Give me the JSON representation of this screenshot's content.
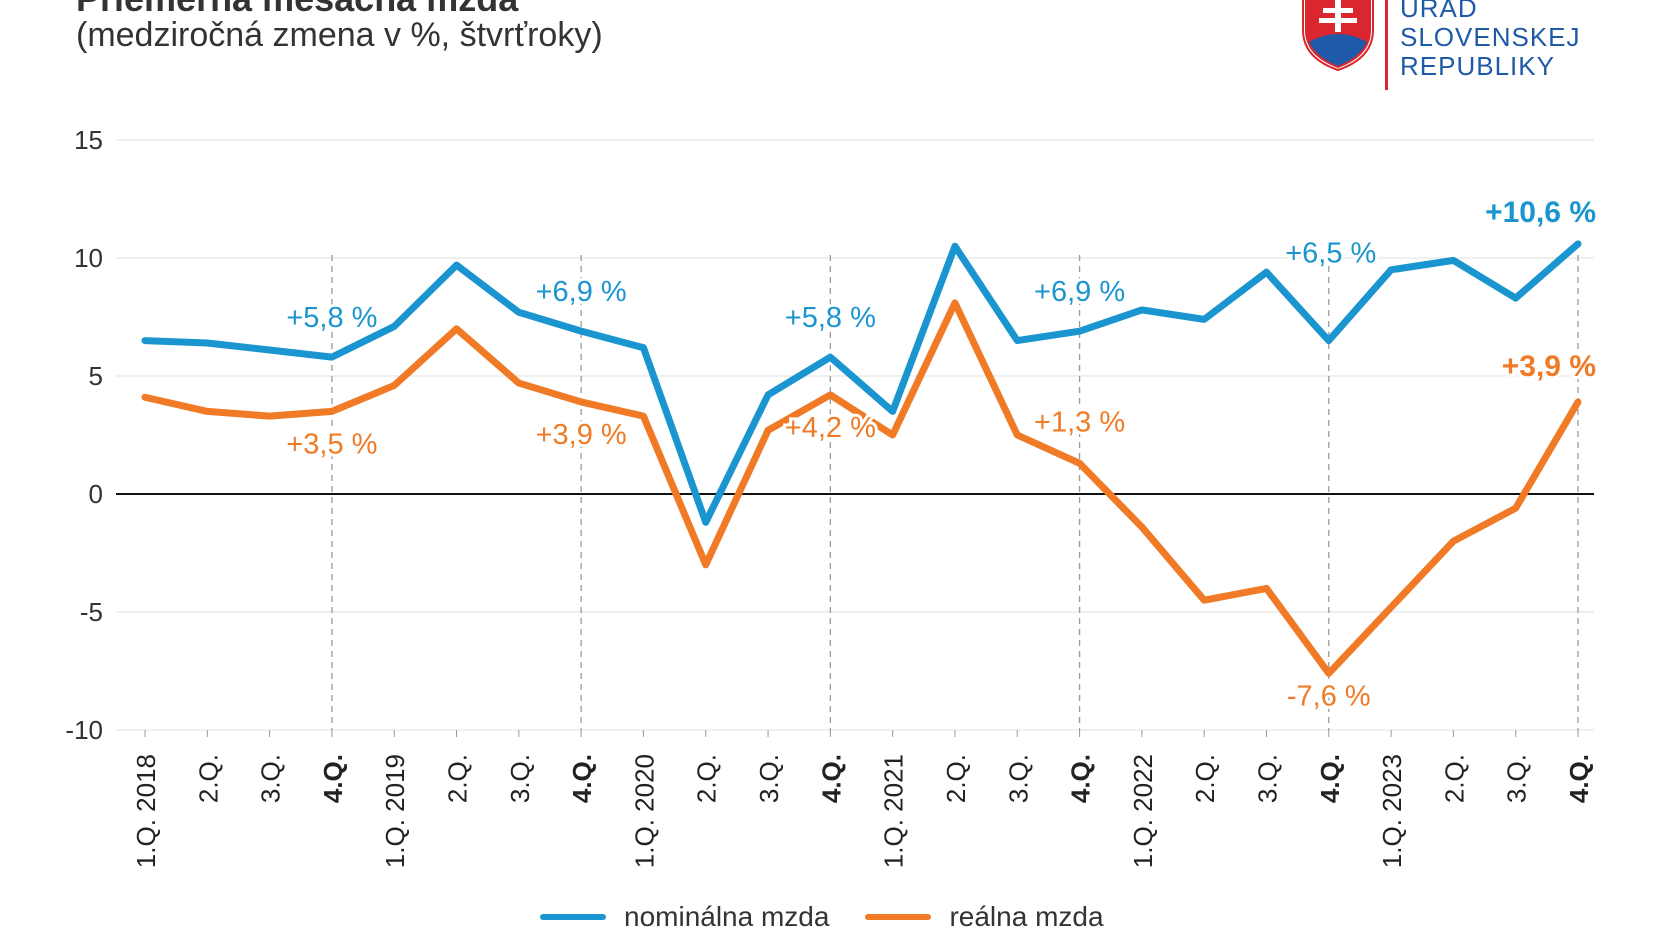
{
  "header": {
    "title": "Priemerná mesačná mzda",
    "subtitle": "(medziročná zmena v %, štvrťroky)"
  },
  "logo": {
    "lines": [
      "ÚRAD",
      "SLOVENSKEJ",
      "REPUBLIKY"
    ],
    "emblem": "slovak-coat-of-arms",
    "colors": {
      "text": "#1f5aa8",
      "divider": "#d9262f",
      "shield_red": "#d9262f",
      "shield_blue": "#1f5aa8"
    }
  },
  "chart_data": {
    "type": "line",
    "title": "",
    "xlabel": "",
    "ylabel": "",
    "ylim": [
      -10,
      15
    ],
    "yticks": [
      "15",
      "10",
      "5",
      "0",
      "-5",
      "-10"
    ],
    "grid": true,
    "categories": [
      "1.Q. 2018",
      "2.Q.",
      "3.Q.",
      "4.Q.",
      "1.Q. 2019",
      "2.Q.",
      "3.Q.",
      "4.Q.",
      "1.Q. 2020",
      "2.Q.",
      "3.Q.",
      "4.Q.",
      "1.Q. 2021",
      "2.Q.",
      "3.Q.",
      "4.Q.",
      "1.Q. 2022",
      "2.Q.",
      "3.Q.",
      "4.Q.",
      "1.Q. 2023",
      "2.Q.",
      "3.Q.",
      "4.Q."
    ],
    "bold_categories": [
      3,
      7,
      11,
      15,
      19,
      23
    ],
    "series": [
      {
        "name": "nominálna mzda",
        "color": "#1b95cf",
        "values": [
          6.5,
          6.4,
          6.1,
          5.8,
          7.1,
          9.7,
          7.7,
          6.9,
          6.2,
          -1.2,
          4.2,
          5.8,
          3.5,
          10.5,
          6.5,
          6.9,
          7.8,
          7.4,
          9.4,
          6.5,
          9.5,
          9.9,
          8.3,
          10.6
        ]
      },
      {
        "name": "reálna mzda",
        "color": "#f07a25",
        "values": [
          4.1,
          3.5,
          3.3,
          3.5,
          4.6,
          7.0,
          4.7,
          3.9,
          3.3,
          -3.0,
          2.7,
          4.2,
          2.5,
          8.1,
          2.5,
          1.3,
          -1.4,
          -4.5,
          -4.0,
          -7.6,
          -4.8,
          -2.0,
          -0.6,
          3.9
        ]
      }
    ],
    "annotations": [
      {
        "series": 0,
        "index": 3,
        "text": "+5,8 %",
        "bold": false
      },
      {
        "series": 0,
        "index": 7,
        "text": "+6,9 %",
        "bold": false
      },
      {
        "series": 0,
        "index": 11,
        "text": "+5,8 %",
        "bold": false
      },
      {
        "series": 0,
        "index": 15,
        "text": "+6,9 %",
        "bold": false
      },
      {
        "series": 0,
        "index": 19,
        "text": "+6,5 %",
        "bold": false
      },
      {
        "series": 0,
        "index": 23,
        "text": "+10,6 %",
        "bold": true
      },
      {
        "series": 1,
        "index": 3,
        "text": "+3,5 %",
        "bold": false
      },
      {
        "series": 1,
        "index": 7,
        "text": "+3,9 %",
        "bold": false
      },
      {
        "series": 1,
        "index": 11,
        "text": "+4,2 %",
        "bold": false
      },
      {
        "series": 1,
        "index": 15,
        "text": "+1,3 %",
        "bold": false
      },
      {
        "series": 1,
        "index": 19,
        "text": "-7,6 %",
        "bold": false
      },
      {
        "series": 1,
        "index": 23,
        "text": "+3,9 %",
        "bold": true
      }
    ],
    "legend": "bottom-center"
  }
}
